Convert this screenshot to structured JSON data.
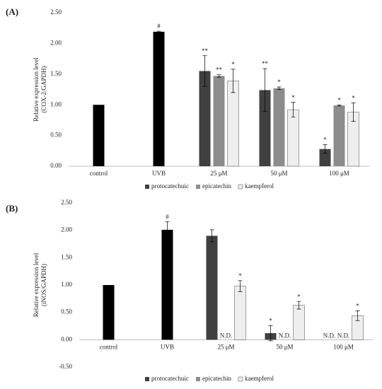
{
  "chart_data": [
    {
      "type": "bar",
      "label": "(A)",
      "ylabel": [
        "Relative expression level",
        "(COX-2/GAPDH)"
      ],
      "categories": [
        "control",
        "UVB",
        "25 μM",
        "50 μM",
        "100 μM"
      ],
      "values": [
        1.0,
        2.19,
        null,
        null,
        null
      ],
      "errors": [
        null,
        0.01,
        null,
        null,
        null
      ],
      "annotations": [
        null,
        "#",
        null,
        null,
        null
      ],
      "color": "#000000",
      "series": [
        {
          "name": "protocatechuic",
          "color": "#404040",
          "values": [
            null,
            null,
            1.55,
            1.24,
            0.28
          ],
          "errors": [
            null,
            null,
            0.25,
            0.35,
            0.07
          ],
          "annotations": [
            null,
            null,
            "**",
            "**",
            "*"
          ]
        },
        {
          "name": "epicatechin",
          "color": "#8c8c8c",
          "values": [
            null,
            null,
            1.47,
            1.27,
            0.99
          ],
          "errors": [
            null,
            null,
            0.02,
            0.02,
            0.01
          ],
          "annotations": [
            null,
            null,
            "**",
            "*",
            "*"
          ]
        },
        {
          "name": "kaempferol",
          "color": "#eeeeee",
          "values": [
            null,
            null,
            1.39,
            0.92,
            0.88
          ],
          "errors": [
            null,
            null,
            0.19,
            0.12,
            0.15
          ],
          "annotations": [
            null,
            null,
            "*",
            "*",
            "*"
          ]
        }
      ],
      "ylim": [
        0,
        2.5
      ],
      "yticks": [
        {
          "value": 0,
          "label": "0.00"
        },
        {
          "value": 0.5,
          "label": "0.50"
        },
        {
          "value": 1,
          "label": "1.00"
        },
        {
          "value": 1.5,
          "label": "1.50"
        },
        {
          "value": 2,
          "label": "2.00"
        },
        {
          "value": 2.5,
          "label": "2.50"
        }
      ]
    },
    {
      "type": "bar",
      "label": "(B)",
      "ylabel": [
        "Relative expression level",
        "(iNOS/GAPDH)"
      ],
      "categories": [
        "control",
        "UVB",
        "25 μM",
        "50 μM",
        "100 μM"
      ],
      "values": [
        1.0,
        2.01,
        null,
        null,
        null
      ],
      "errors": [
        null,
        0.15,
        null,
        null,
        null
      ],
      "annotations": [
        null,
        "#",
        null,
        null,
        null
      ],
      "color": "#000000",
      "series": [
        {
          "name": "protocatechuic",
          "color": "#404040",
          "values": [
            null,
            null,
            1.9,
            0.12,
            null
          ],
          "errors": [
            null,
            null,
            0.11,
            0.14,
            null
          ],
          "annotations": [
            null,
            null,
            null,
            "*",
            "N.D."
          ]
        },
        {
          "name": "epicatechin",
          "color": "#8c8c8c",
          "values": [
            null,
            null,
            null,
            null,
            null
          ],
          "errors": [
            null,
            null,
            null,
            null,
            null
          ],
          "annotations": [
            null,
            null,
            "N.D.",
            "N.D.",
            "N.D."
          ]
        },
        {
          "name": "kaempferol",
          "color": "#eeeeee",
          "values": [
            null,
            null,
            0.98,
            0.63,
            0.44
          ],
          "errors": [
            null,
            null,
            0.1,
            0.07,
            0.09
          ],
          "annotations": [
            null,
            null,
            "*",
            "*",
            "*"
          ]
        }
      ],
      "ylim": [
        -0.5,
        2.5
      ],
      "yticks": [
        {
          "value": -0.5,
          "label": "-0.50"
        },
        {
          "value": 0,
          "label": "0.00"
        },
        {
          "value": 0.5,
          "label": "0.50"
        },
        {
          "value": 1,
          "label": "1.00"
        },
        {
          "value": 1.5,
          "label": "1.50"
        },
        {
          "value": 2,
          "label": "2.00"
        },
        {
          "value": 2.5,
          "label": "2.50"
        }
      ]
    }
  ]
}
